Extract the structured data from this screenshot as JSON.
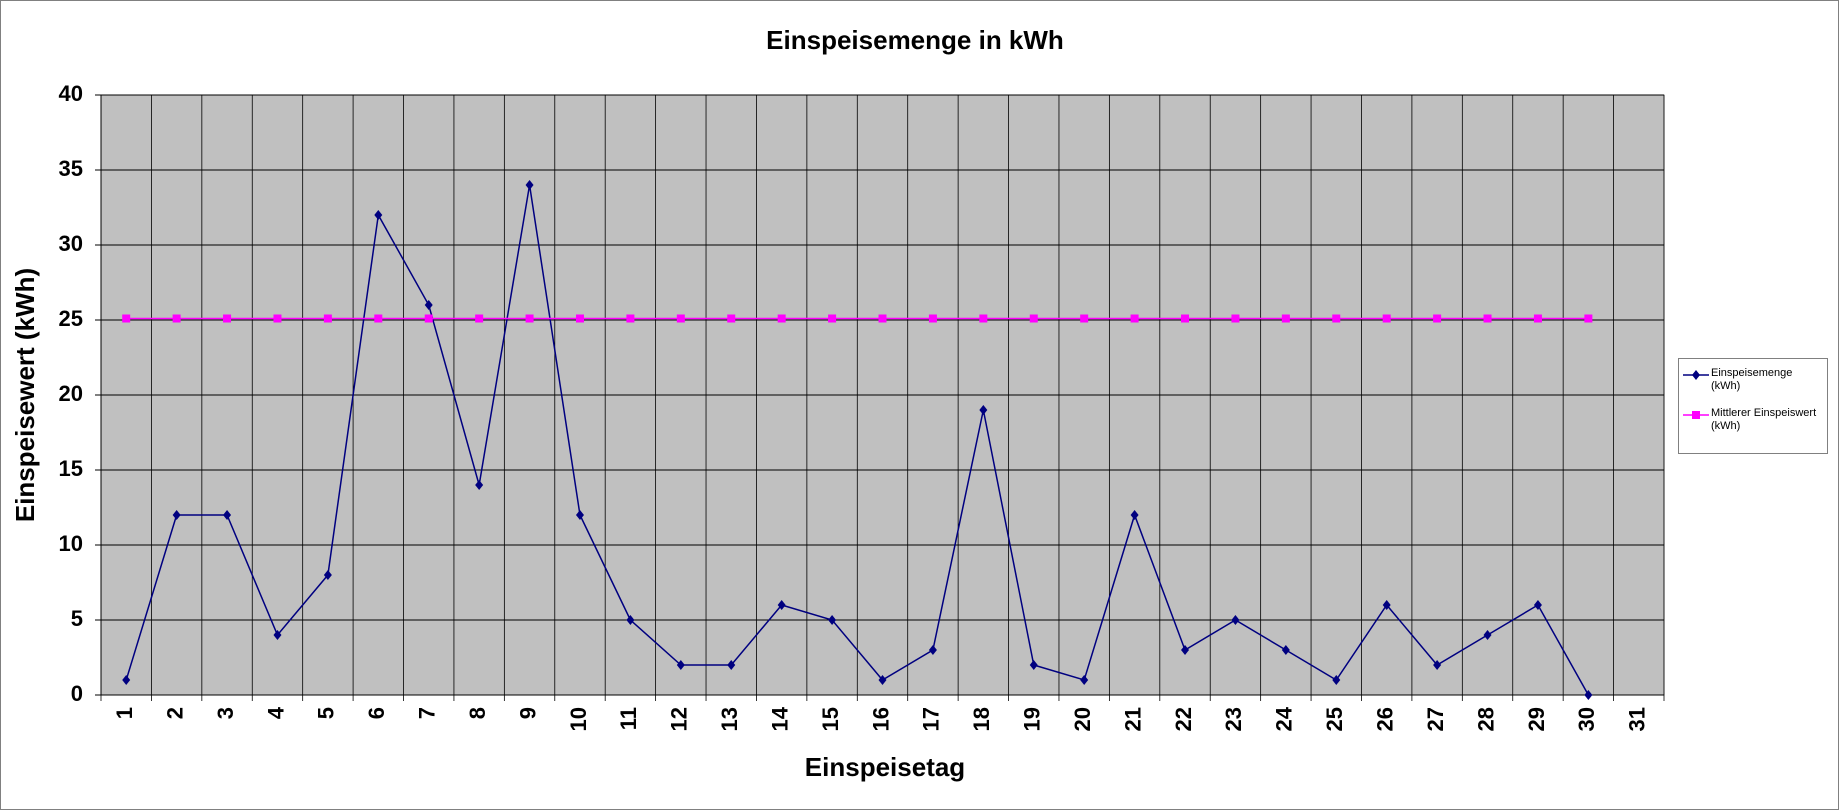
{
  "chart_data": {
    "type": "line",
    "title": "Einspeisemenge in kWh",
    "x_label": "Einspeisetag",
    "y_label": "Einspeisewert  (kWh)",
    "categories": [
      "1",
      "2",
      "3",
      "4",
      "5",
      "6",
      "7",
      "8",
      "9",
      "10",
      "11",
      "12",
      "13",
      "14",
      "15",
      "16",
      "17",
      "18",
      "19",
      "20",
      "21",
      "22",
      "23",
      "24",
      "25",
      "26",
      "27",
      "28",
      "29",
      "30",
      "31"
    ],
    "series": [
      {
        "name": "Einspeisemenge (kWh)",
        "color": "#000080",
        "marker": "diamond",
        "values": [
          1,
          12,
          12,
          4,
          8,
          32,
          26,
          14,
          34,
          12,
          5,
          2,
          2,
          6,
          5,
          1,
          3,
          19,
          2,
          1,
          12,
          3,
          5,
          3,
          1,
          6,
          2,
          4,
          6,
          0,
          null
        ]
      },
      {
        "name": "Mittlerer Einspeiswert (kWh)",
        "color": "#ff00ff",
        "marker": "square",
        "values": [
          25.1,
          25.1,
          25.1,
          25.1,
          25.1,
          25.1,
          25.1,
          25.1,
          25.1,
          25.1,
          25.1,
          25.1,
          25.1,
          25.1,
          25.1,
          25.1,
          25.1,
          25.1,
          25.1,
          25.1,
          25.1,
          25.1,
          25.1,
          25.1,
          25.1,
          25.1,
          25.1,
          25.1,
          25.1,
          25.1,
          null
        ]
      }
    ],
    "ylim": [
      0,
      40
    ],
    "yticks": [
      0,
      5,
      10,
      15,
      20,
      25,
      30,
      35,
      40
    ],
    "grid": true,
    "legend": "right",
    "plot_background": "#c0c0c0"
  }
}
